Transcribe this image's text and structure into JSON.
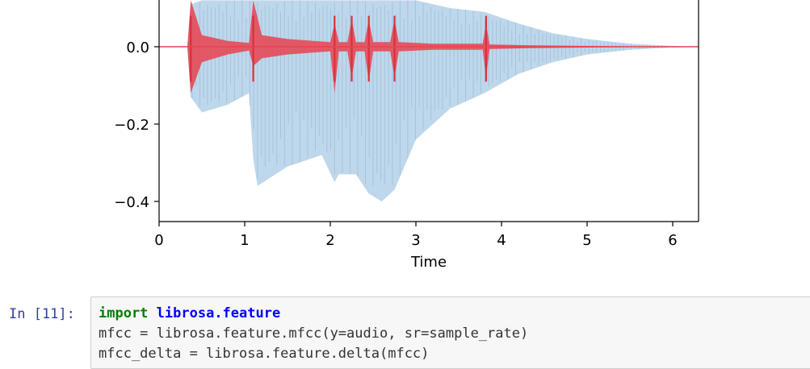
{
  "chart_data": {
    "type": "area",
    "title": "",
    "xlabel": "Time",
    "ylabel": "",
    "xlim": [
      0,
      6.3
    ],
    "ylim": [
      -0.45,
      0.12
    ],
    "xticks": [
      0,
      1,
      2,
      3,
      4,
      5,
      6
    ],
    "xtick_labels": [
      "0",
      "1",
      "2",
      "3",
      "4",
      "5",
      "6"
    ],
    "yticks": [
      0.0,
      -0.2,
      -0.4
    ],
    "ytick_labels": [
      "0.0",
      "−0.2",
      "−0.4"
    ],
    "grid": false,
    "series": [
      {
        "color": "#a9c9e3",
        "x": [
          0,
          0.33,
          0.37,
          0.5,
          0.8,
          1.05,
          1.1,
          1.15,
          1.5,
          1.9,
          2.05,
          2.1,
          2.3,
          2.45,
          2.6,
          2.75,
          3.0,
          3.4,
          3.8,
          4.2,
          4.6,
          5.0,
          5.5,
          6.0,
          6.3
        ],
        "upper": [
          0,
          0.0,
          0.11,
          0.12,
          0.12,
          0.12,
          0.12,
          0.12,
          0.12,
          0.12,
          0.12,
          0.12,
          0.12,
          0.12,
          0.12,
          0.12,
          0.12,
          0.1,
          0.09,
          0.06,
          0.035,
          0.02,
          0.008,
          0.002,
          0.0
        ],
        "lower": [
          0,
          0.0,
          -0.13,
          -0.17,
          -0.15,
          -0.12,
          -0.29,
          -0.36,
          -0.31,
          -0.28,
          -0.35,
          -0.33,
          -0.33,
          -0.38,
          -0.4,
          -0.37,
          -0.24,
          -0.16,
          -0.12,
          -0.07,
          -0.04,
          -0.02,
          -0.008,
          -0.002,
          0.0
        ]
      },
      {
        "color": "#e8434f",
        "x": [
          0,
          0.33,
          0.37,
          0.5,
          0.8,
          1.05,
          1.1,
          1.2,
          1.5,
          2.0,
          2.05,
          2.1,
          2.2,
          2.25,
          2.3,
          2.4,
          2.45,
          2.5,
          2.7,
          2.75,
          2.8,
          3.2,
          3.78,
          3.82,
          3.86,
          4.3,
          5.0,
          6.0,
          6.3
        ],
        "upper": [
          0,
          0.0,
          0.12,
          0.03,
          0.015,
          0.01,
          0.12,
          0.03,
          0.02,
          0.012,
          0.06,
          0.012,
          0.012,
          0.07,
          0.012,
          0.012,
          0.07,
          0.012,
          0.012,
          0.07,
          0.012,
          0.008,
          0.008,
          0.06,
          0.006,
          0.004,
          0.002,
          0.0,
          0.0
        ],
        "lower": [
          0,
          0.0,
          -0.12,
          -0.04,
          -0.02,
          -0.01,
          -0.05,
          -0.03,
          -0.02,
          -0.012,
          -0.12,
          -0.012,
          -0.012,
          -0.08,
          -0.012,
          -0.012,
          -0.09,
          -0.012,
          -0.012,
          -0.08,
          -0.012,
          -0.008,
          -0.008,
          -0.08,
          -0.006,
          -0.004,
          -0.002,
          0.0,
          0.0
        ],
        "spikes": [
          0.37,
          1.1,
          2.05,
          2.25,
          2.45,
          2.75,
          3.82
        ]
      }
    ]
  },
  "cell": {
    "prompt": "In [11]:",
    "lines": [
      {
        "kw": "import",
        "mod": "librosa.feature",
        "rest": ""
      },
      {
        "kw": "",
        "mod": "",
        "rest": "mfcc = librosa.feature.mfcc(y=audio, sr=sample_rate)"
      },
      {
        "kw": "",
        "mod": "",
        "rest": "mfcc_delta = librosa.feature.delta(mfcc)"
      }
    ]
  }
}
